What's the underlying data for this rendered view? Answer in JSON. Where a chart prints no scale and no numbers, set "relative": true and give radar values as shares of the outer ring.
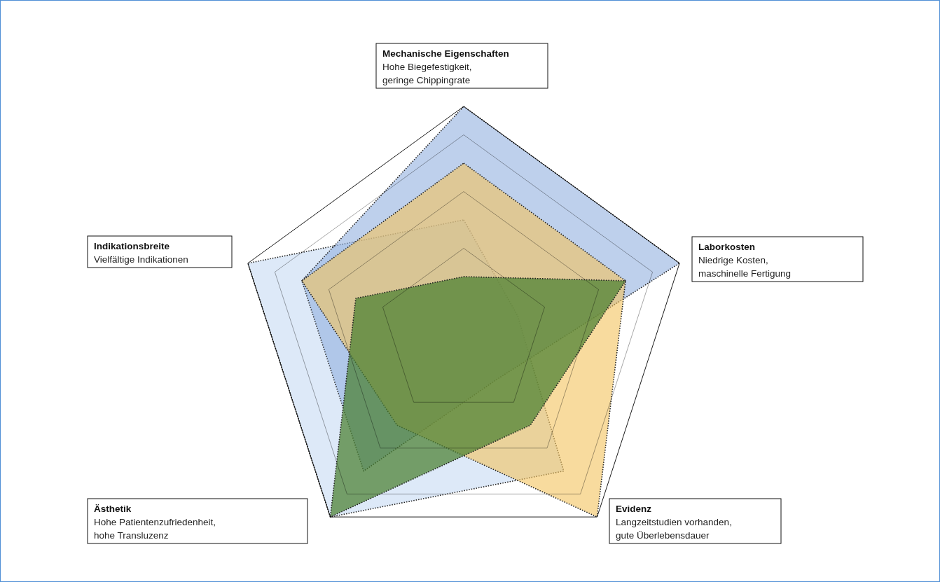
{
  "chart_data": {
    "type": "radar",
    "relative": true,
    "categories": [
      "Mechanische Eigenschaften",
      "Laborkosten",
      "Evidenz",
      "Ästhetik",
      "Indikationsbreite"
    ],
    "annotations": [
      "Hohe Biegefestigkeit,\ngeringe Chippingrate",
      "Niedrige Kosten,\nmaschinelle Fertigung",
      "Langzeitstudien vorhanden,\ngute Überlebensdauer",
      "Hohe Patientenzufriedenheit,\nhohe Transluzenz",
      "Vielfältige Indikationen"
    ],
    "grid": true,
    "line_style": "dotted",
    "series": [
      {
        "color": "#d2e1f6",
        "values": [
          0.5,
          0.25,
          0.75,
          1,
          1
        ]
      },
      {
        "color": "#93b0e0",
        "values": [
          1,
          1,
          0.25,
          0.75,
          0.75
        ]
      },
      {
        "color": "#f3c35e",
        "values": [
          0.75,
          0.75,
          1,
          0.5,
          0.75
        ]
      },
      {
        "color": "#4a7f30",
        "values": [
          0.25,
          0.75,
          0.5,
          1,
          0.5
        ]
      }
    ]
  }
}
